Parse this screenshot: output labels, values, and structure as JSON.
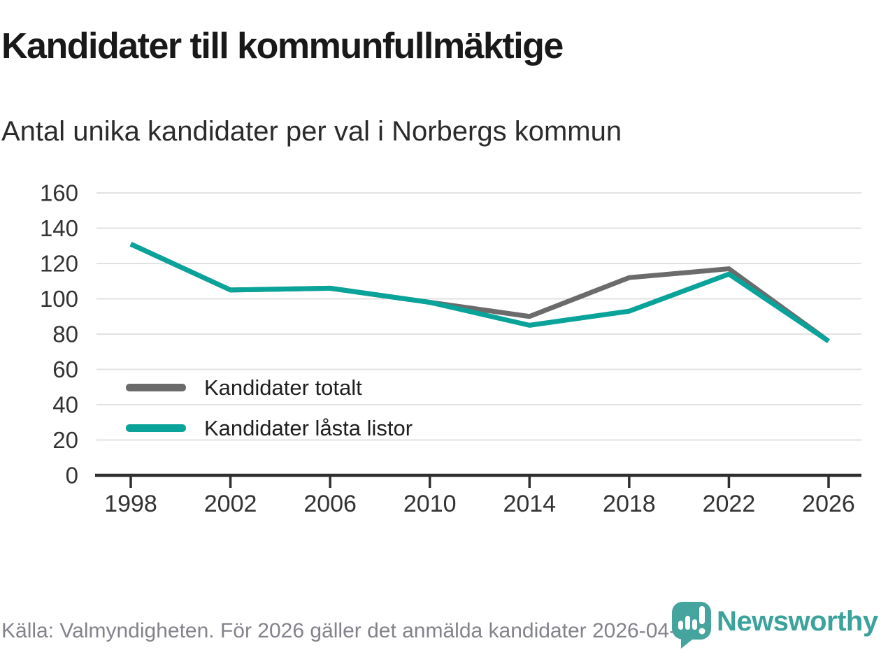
{
  "chart_data": {
    "type": "line",
    "title": "Kandidater till kommunfullmäktige",
    "subtitle": "Antal unika kandidater per val i Norbergs kommun",
    "x": [
      1998,
      2002,
      2006,
      2010,
      2014,
      2018,
      2022,
      2026
    ],
    "series": [
      {
        "name": "Kandidater totalt",
        "color": "#6b6b6b",
        "values": [
          131,
          105,
          106,
          98,
          90,
          112,
          117,
          76
        ]
      },
      {
        "name": "Kandidater låsta listor",
        "color": "#0aa39a",
        "values": [
          131,
          105,
          106,
          98,
          85,
          93,
          114,
          76
        ]
      }
    ],
    "xlabel": "",
    "ylabel": "",
    "ylim": [
      0,
      160
    ],
    "yticks": [
      0,
      20,
      40,
      60,
      80,
      100,
      120,
      140,
      160
    ],
    "grid": true,
    "legend_position": "inside-bottom-left"
  },
  "footer": {
    "source": "Källa: Valmyndigheten. För 2026 gäller det anmälda kandidater 2026-04-10.",
    "brand": "Newsworthy"
  },
  "icons": {
    "logo": "newsworthy-pin-bar-chart-icon"
  },
  "colors": {
    "grid": "#e2e2e2",
    "axis": "#2e2e2e",
    "axis_text": "#333333",
    "brand_teal": "#3ba29c",
    "title_text": "#191919",
    "footer_text": "#83838b"
  }
}
